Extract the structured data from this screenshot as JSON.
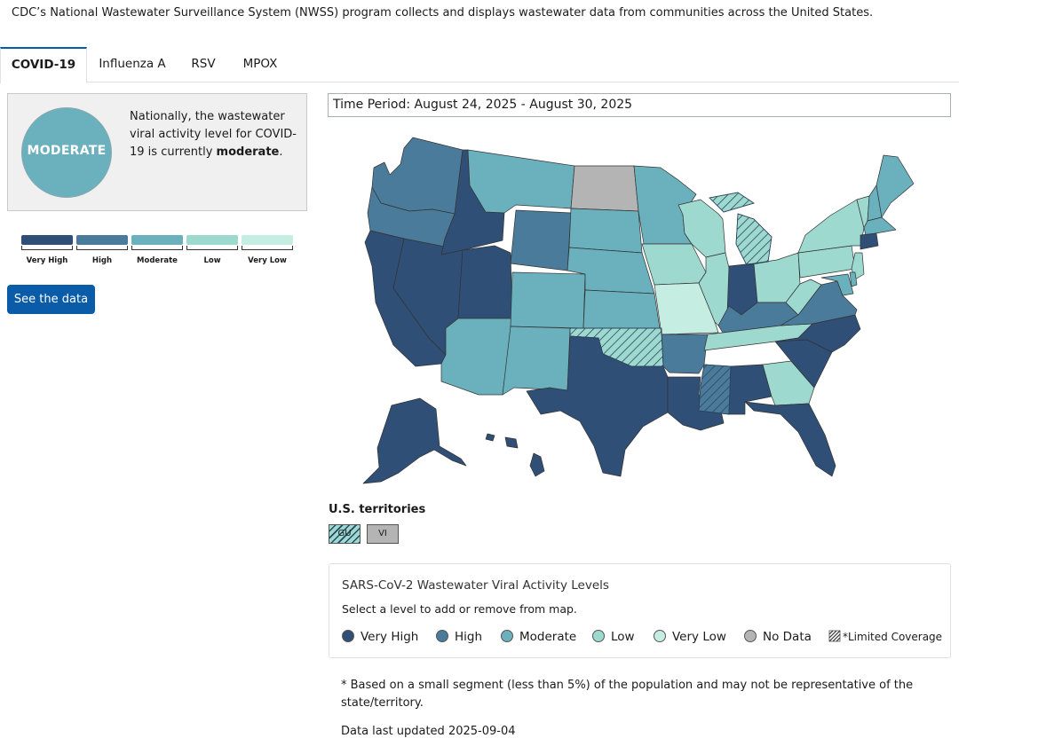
{
  "intro": "CDC’s National Wastewater Surveillance System (NWSS) program collects and displays wastewater data from communities across the United States.",
  "tabs": [
    {
      "label": "COVID-19",
      "active": true
    },
    {
      "label": "Influenza A",
      "active": false
    },
    {
      "label": "RSV",
      "active": false
    },
    {
      "label": "MPOX",
      "active": false
    }
  ],
  "summary": {
    "badge": "MODERATE",
    "text_before": "Nationally, the wastewater viral activity level for COVID-19 is currently",
    "text_bold": "moderate",
    "text_after": "."
  },
  "scale": {
    "labels": [
      "Very High",
      "High",
      "Moderate",
      "Low",
      "Very Low"
    ],
    "colors": [
      "#2f4f76",
      "#4a7b9a",
      "#6ab0bd",
      "#9ed9d0",
      "#c6ede1"
    ]
  },
  "see_data_label": "See the data",
  "time_period": "Time Period: August 24, 2025 - August 30, 2025",
  "levels": {
    "very_high": "#2f4f76",
    "high": "#4a7b9a",
    "moderate": "#6ab0bd",
    "low": "#9ed9d0",
    "very_low": "#c6ede1",
    "no_data": "#b4b4b4"
  },
  "states": {
    "WA": "high",
    "OR": "high",
    "CA": "very_high",
    "NV": "very_high",
    "ID": "very_high",
    "MT": "moderate",
    "WY": "high",
    "UT": "very_high",
    "AZ": "moderate",
    "CO": "moderate",
    "NM": "moderate",
    "ND": "no_data",
    "SD": "moderate",
    "NE": "moderate",
    "KS": "moderate",
    "OK": "low",
    "TX": "very_high",
    "MN": "moderate",
    "IA": "low",
    "MO": "very_low",
    "AR": "high",
    "LA": "very_high",
    "WI": "low",
    "IL": "low",
    "MS": "high",
    "MI": "low",
    "IN": "very_high",
    "KY": "high",
    "TN": "low",
    "AL": "very_high",
    "GA": "low",
    "FL": "very_high",
    "SC": "very_high",
    "NC": "very_high",
    "VA": "high",
    "WV": "low",
    "OH": "low",
    "PA": "low",
    "NY": "low",
    "VT": "low",
    "NH": "moderate",
    "ME": "moderate",
    "MA": "moderate",
    "CT": "very_high",
    "NJ": "low",
    "MD": "moderate",
    "DE": "moderate",
    "AK": "very_high",
    "HI": "very_high"
  },
  "limited_coverage_states": [
    "OK",
    "MS",
    "MI"
  ],
  "territories": {
    "title": "U.S. territories",
    "items": [
      {
        "code": "GU",
        "level": "low",
        "limited": true
      },
      {
        "code": "VI",
        "level": "no_data",
        "limited": false
      }
    ]
  },
  "legend": {
    "title": "SARS-CoV-2 Wastewater Viral Activity Levels",
    "subtitle": "Select a level to add or remove from map.",
    "items": [
      {
        "label": "Very High",
        "level": "very_high"
      },
      {
        "label": "High",
        "level": "high"
      },
      {
        "label": "Moderate",
        "level": "moderate"
      },
      {
        "label": "Low",
        "level": "low"
      },
      {
        "label": "Very Low",
        "level": "very_low"
      },
      {
        "label": "No Data",
        "level": "no_data"
      }
    ],
    "limited_label": "*Limited Coverage"
  },
  "footnote": "* Based on a small segment (less than 5%) of the population and may not be representative of the state/territory.",
  "updated": "Data last updated 2025-09-04"
}
